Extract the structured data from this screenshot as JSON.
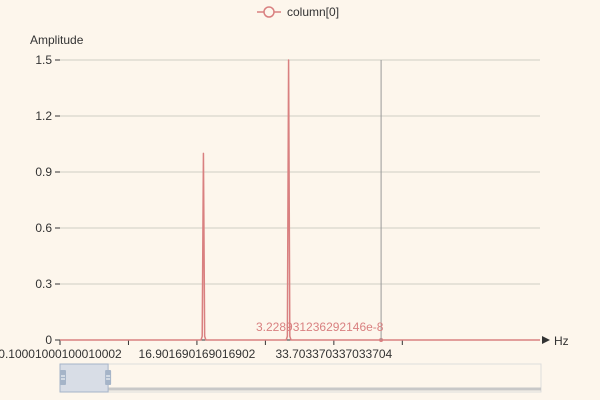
{
  "colors": {
    "background": "#fdf6ec",
    "series": "#d98080",
    "grid": "#cfcfc4",
    "axis": "#333333",
    "pointer_line": "#999999",
    "zoom_fill": "#d8dde6",
    "zoom_handle": "#a5b4c8"
  },
  "legend": {
    "items": [
      {
        "label": "column[0]",
        "icon": "circle-line-icon"
      }
    ]
  },
  "pointer": {
    "label": "3.228931236292146e-8",
    "x": 39.5
  },
  "zoom": {
    "start_fraction": 0.0,
    "end_fraction": 0.1
  },
  "chart_data": {
    "type": "line",
    "xlabel": "Hz",
    "ylabel": "Amplitude",
    "ylim": [
      0,
      1.5
    ],
    "xlim": [
      0.1000100010001,
      59.0
    ],
    "yticks": [
      0,
      0.3,
      0.6,
      0.9,
      1.2,
      1.5
    ],
    "ytick_labels": [
      "0",
      "0.3",
      "0.6",
      "0.9",
      "1.2",
      "1.5"
    ],
    "xticks": [
      0.1000100010001,
      16.901690169016902,
      33.703370337033704
    ],
    "xtick_labels": [
      "0.10001000100010002",
      "16.901690169016902",
      "33.703370337033704"
    ],
    "grid": true,
    "legend_position": "top-center",
    "series": [
      {
        "name": "column[0]",
        "x": [
          0.1,
          17.4,
          17.55,
          17.7,
          17.85,
          18.0,
          27.85,
          28.0,
          28.15,
          28.3,
          28.45,
          59.0
        ],
        "y": [
          0,
          0,
          0.02,
          1.0,
          0.02,
          0,
          0,
          0.02,
          1.5,
          0.02,
          0,
          0
        ]
      }
    ]
  }
}
